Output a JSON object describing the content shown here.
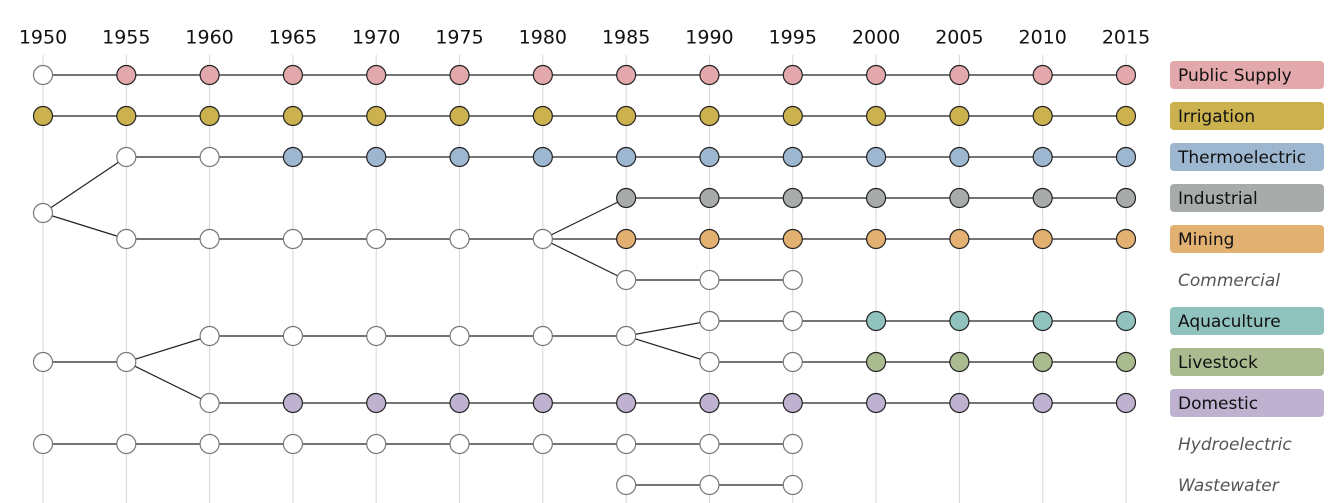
{
  "years": [
    1950,
    1955,
    1960,
    1965,
    1970,
    1975,
    1980,
    1985,
    1990,
    1995,
    2000,
    2005,
    2010,
    2015
  ],
  "legend": [
    {
      "label": "Public Supply",
      "color": "#e3a8ab"
    },
    {
      "label": "Irrigation",
      "color": "#cbb24f"
    },
    {
      "label": "Thermoelectric",
      "color": "#9db7d0"
    },
    {
      "label": "Industrial",
      "color": "#a7abaa"
    },
    {
      "label": "Mining",
      "color": "#e2b071"
    },
    {
      "label": "Commercial"
    },
    {
      "label": "Aquaculture",
      "color": "#91c3be"
    },
    {
      "label": "Livestock",
      "color": "#aabb90"
    },
    {
      "label": "Domestic",
      "color": "#beb2d0"
    },
    {
      "label": "Hydroelectric"
    },
    {
      "label": "Wastewater"
    }
  ]
}
